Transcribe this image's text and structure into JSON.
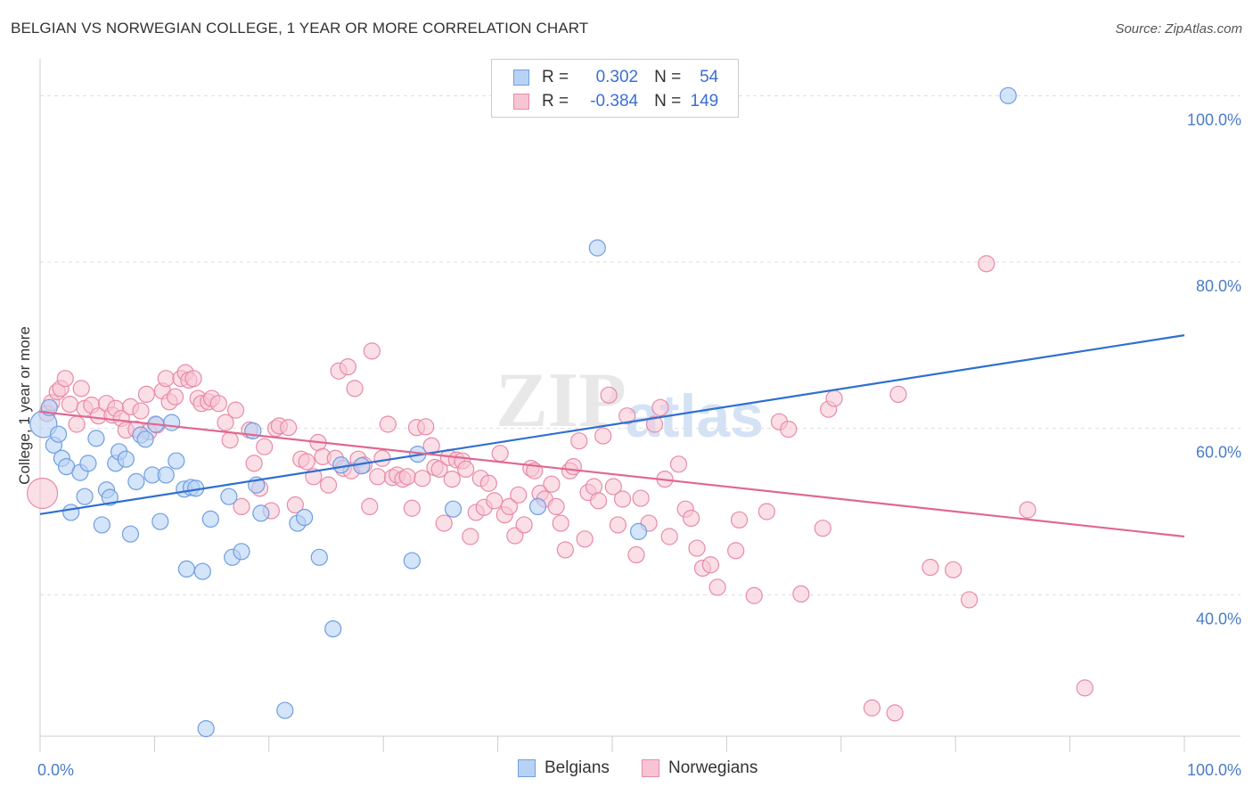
{
  "title": "BELGIAN VS NORWEGIAN COLLEGE, 1 YEAR OR MORE CORRELATION CHART",
  "source": "Source: ZipAtlas.com",
  "legend": {
    "rows": [
      {
        "r_label": "R =",
        "r_value": "0.302",
        "n_label": "N =",
        "n_value": "54"
      },
      {
        "r_label": "R =",
        "r_value": "-0.384",
        "n_label": "N =",
        "n_value": "149"
      }
    ]
  },
  "bottom_legend": [
    "Belgians",
    "Norwegians"
  ],
  "colors": {
    "belgians_fill": "#b8d2f5",
    "belgians_stroke": "#6f9ee0",
    "belgians_line": "#2f6fd0",
    "norwegians_fill": "#f8c4d4",
    "norwegians_stroke": "#e88aa8",
    "norwegians_line": "#e06891",
    "tick_text": "#4a7cc9"
  },
  "chart_data": {
    "type": "scatter",
    "ylabel": "College, 1 year or more",
    "xlim": [
      0,
      100
    ],
    "ylim": [
      23,
      104
    ],
    "x_tick_labels": [
      "0.0%",
      "100.0%"
    ],
    "y_ticks": [
      {
        "value": 40,
        "label": "40.0%"
      },
      {
        "value": 60,
        "label": "60.0%"
      },
      {
        "value": 80,
        "label": "80.0%"
      },
      {
        "value": 100,
        "label": "100.0%"
      }
    ],
    "grid": true,
    "legend_position": "top-center",
    "series": [
      {
        "name": "Belgians",
        "trend": {
          "x": [
            0,
            100
          ],
          "y": [
            49.7,
            71.2
          ]
        },
        "points": [
          [
            0.3,
            60.5
          ],
          [
            0.8,
            62.5
          ],
          [
            1.2,
            58.0
          ],
          [
            1.6,
            59.3
          ],
          [
            1.9,
            56.4
          ],
          [
            2.3,
            55.4
          ],
          [
            2.7,
            49.9
          ],
          [
            3.5,
            54.7
          ],
          [
            3.9,
            51.8
          ],
          [
            4.2,
            55.8
          ],
          [
            4.9,
            58.8
          ],
          [
            5.4,
            48.4
          ],
          [
            5.8,
            52.6
          ],
          [
            6.1,
            51.7
          ],
          [
            6.6,
            55.8
          ],
          [
            6.9,
            57.2
          ],
          [
            7.5,
            56.3
          ],
          [
            7.9,
            47.3
          ],
          [
            8.4,
            53.6
          ],
          [
            8.8,
            59.2
          ],
          [
            9.2,
            58.7
          ],
          [
            9.8,
            54.4
          ],
          [
            10.1,
            60.5
          ],
          [
            10.5,
            48.8
          ],
          [
            11.0,
            54.4
          ],
          [
            11.5,
            60.7
          ],
          [
            11.9,
            56.1
          ],
          [
            12.6,
            52.7
          ],
          [
            12.8,
            43.1
          ],
          [
            13.2,
            52.9
          ],
          [
            13.6,
            52.8
          ],
          [
            14.2,
            42.8
          ],
          [
            14.5,
            23.9
          ],
          [
            14.9,
            49.1
          ],
          [
            16.5,
            51.8
          ],
          [
            16.8,
            44.5
          ],
          [
            17.6,
            45.2
          ],
          [
            18.6,
            59.7
          ],
          [
            18.9,
            53.2
          ],
          [
            19.3,
            49.8
          ],
          [
            21.4,
            26.1
          ],
          [
            22.5,
            48.6
          ],
          [
            23.1,
            49.3
          ],
          [
            24.4,
            44.5
          ],
          [
            25.6,
            35.9
          ],
          [
            26.3,
            55.6
          ],
          [
            28.1,
            55.5
          ],
          [
            32.5,
            44.1
          ],
          [
            33.0,
            56.9
          ],
          [
            36.1,
            50.3
          ],
          [
            43.5,
            50.6
          ],
          [
            48.7,
            81.7
          ],
          [
            52.3,
            47.6
          ],
          [
            84.6,
            100.0
          ]
        ]
      },
      {
        "name": "Norwegians",
        "trend": {
          "x": [
            0,
            100
          ],
          "y": [
            62.0,
            47.0
          ]
        },
        "points": [
          [
            0.2,
            52.2
          ],
          [
            0.6,
            61.8
          ],
          [
            1.0,
            63.1
          ],
          [
            1.5,
            64.4
          ],
          [
            1.8,
            64.8
          ],
          [
            2.2,
            66.0
          ],
          [
            2.6,
            62.9
          ],
          [
            3.2,
            60.5
          ],
          [
            3.6,
            64.8
          ],
          [
            3.9,
            62.4
          ],
          [
            4.5,
            62.8
          ],
          [
            5.1,
            61.5
          ],
          [
            5.8,
            63.0
          ],
          [
            6.3,
            61.6
          ],
          [
            6.6,
            62.4
          ],
          [
            7.1,
            61.2
          ],
          [
            7.5,
            59.8
          ],
          [
            7.9,
            62.6
          ],
          [
            8.4,
            59.9
          ],
          [
            8.8,
            62.1
          ],
          [
            9.3,
            64.1
          ],
          [
            9.5,
            59.6
          ],
          [
            10.2,
            60.4
          ],
          [
            10.7,
            64.5
          ],
          [
            11.0,
            66.0
          ],
          [
            11.3,
            63.2
          ],
          [
            11.8,
            63.8
          ],
          [
            12.3,
            66.0
          ],
          [
            12.7,
            66.7
          ],
          [
            13.0,
            65.8
          ],
          [
            13.4,
            66.0
          ],
          [
            13.8,
            63.6
          ],
          [
            14.1,
            63.0
          ],
          [
            14.7,
            63.2
          ],
          [
            15.0,
            63.6
          ],
          [
            15.6,
            63.0
          ],
          [
            16.2,
            60.7
          ],
          [
            16.6,
            58.6
          ],
          [
            17.1,
            62.2
          ],
          [
            17.6,
            50.6
          ],
          [
            18.3,
            59.8
          ],
          [
            18.7,
            55.8
          ],
          [
            19.2,
            52.8
          ],
          [
            19.6,
            57.8
          ],
          [
            20.2,
            50.1
          ],
          [
            20.6,
            60.0
          ],
          [
            20.9,
            60.3
          ],
          [
            21.7,
            60.1
          ],
          [
            22.3,
            50.8
          ],
          [
            22.8,
            56.3
          ],
          [
            23.3,
            56.0
          ],
          [
            23.9,
            54.2
          ],
          [
            24.3,
            58.3
          ],
          [
            24.7,
            56.6
          ],
          [
            25.2,
            53.2
          ],
          [
            25.8,
            56.4
          ],
          [
            26.1,
            66.9
          ],
          [
            26.5,
            55.2
          ],
          [
            26.9,
            67.4
          ],
          [
            27.2,
            54.9
          ],
          [
            27.5,
            64.8
          ],
          [
            27.8,
            56.3
          ],
          [
            28.3,
            55.6
          ],
          [
            28.8,
            50.6
          ],
          [
            29.0,
            69.3
          ],
          [
            29.5,
            54.2
          ],
          [
            29.9,
            56.4
          ],
          [
            30.4,
            60.5
          ],
          [
            30.8,
            54.1
          ],
          [
            31.2,
            54.4
          ],
          [
            31.7,
            53.9
          ],
          [
            32.1,
            54.2
          ],
          [
            32.5,
            50.4
          ],
          [
            32.9,
            60.1
          ],
          [
            33.4,
            54.0
          ],
          [
            33.7,
            60.2
          ],
          [
            34.2,
            57.9
          ],
          [
            34.5,
            55.3
          ],
          [
            34.9,
            55.1
          ],
          [
            35.3,
            48.6
          ],
          [
            35.7,
            56.5
          ],
          [
            36.0,
            53.9
          ],
          [
            36.4,
            56.2
          ],
          [
            36.9,
            56.1
          ],
          [
            37.2,
            55.1
          ],
          [
            37.6,
            47.0
          ],
          [
            38.1,
            49.9
          ],
          [
            38.5,
            54.0
          ],
          [
            38.8,
            50.5
          ],
          [
            39.2,
            53.4
          ],
          [
            39.7,
            51.3
          ],
          [
            40.2,
            57.0
          ],
          [
            40.6,
            49.6
          ],
          [
            41.0,
            50.6
          ],
          [
            41.5,
            47.1
          ],
          [
            41.8,
            52.0
          ],
          [
            42.3,
            48.4
          ],
          [
            42.9,
            55.2
          ],
          [
            43.2,
            54.9
          ],
          [
            43.7,
            52.2
          ],
          [
            44.1,
            51.5
          ],
          [
            44.7,
            53.3
          ],
          [
            45.1,
            50.6
          ],
          [
            45.5,
            48.6
          ],
          [
            45.9,
            45.4
          ],
          [
            46.3,
            54.9
          ],
          [
            46.6,
            55.4
          ],
          [
            47.1,
            58.5
          ],
          [
            47.6,
            46.7
          ],
          [
            47.9,
            52.3
          ],
          [
            48.4,
            53.0
          ],
          [
            48.8,
            51.3
          ],
          [
            49.2,
            59.1
          ],
          [
            49.7,
            64.0
          ],
          [
            50.1,
            53.0
          ],
          [
            50.5,
            48.4
          ],
          [
            50.9,
            51.5
          ],
          [
            51.3,
            61.5
          ],
          [
            52.1,
            44.8
          ],
          [
            52.5,
            51.6
          ],
          [
            53.2,
            48.6
          ],
          [
            53.7,
            60.5
          ],
          [
            54.2,
            62.5
          ],
          [
            54.6,
            53.9
          ],
          [
            55.0,
            47.0
          ],
          [
            55.8,
            55.7
          ],
          [
            56.4,
            50.3
          ],
          [
            56.9,
            49.2
          ],
          [
            57.4,
            45.6
          ],
          [
            57.9,
            43.2
          ],
          [
            58.6,
            43.6
          ],
          [
            59.2,
            40.9
          ],
          [
            60.8,
            45.3
          ],
          [
            61.1,
            49.0
          ],
          [
            62.4,
            39.9
          ],
          [
            63.5,
            50.0
          ],
          [
            64.6,
            60.8
          ],
          [
            65.4,
            59.9
          ],
          [
            66.5,
            40.1
          ],
          [
            68.4,
            48.0
          ],
          [
            68.9,
            62.3
          ],
          [
            69.4,
            63.6
          ],
          [
            72.7,
            26.4
          ],
          [
            74.7,
            25.8
          ],
          [
            75.0,
            64.1
          ],
          [
            77.8,
            43.3
          ],
          [
            79.8,
            43.0
          ],
          [
            81.2,
            39.4
          ],
          [
            82.7,
            79.8
          ],
          [
            86.3,
            50.2
          ],
          [
            91.3,
            28.8
          ]
        ]
      }
    ]
  }
}
